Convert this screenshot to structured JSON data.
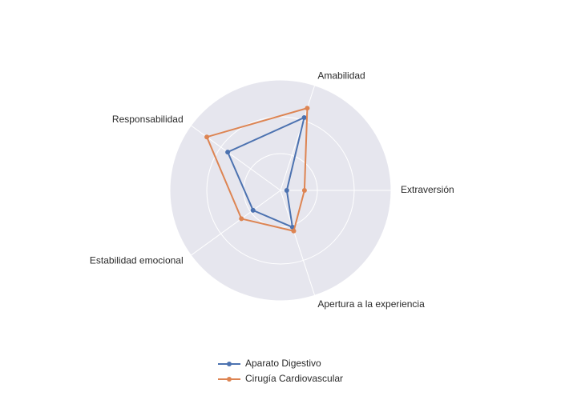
{
  "chart_data": {
    "type": "radar",
    "categories": [
      "Extraversión",
      "Amabilidad",
      "Responsabilidad",
      "Estabilidad emocional",
      "Apertura a la experiencia"
    ],
    "rlim": [
      0,
      3
    ],
    "rticks": [
      1,
      2,
      3
    ],
    "grid": true,
    "legend": "bottom",
    "series": [
      {
        "name": "Aparato Digestivo",
        "color": "#4c72b0",
        "values": [
          0.17,
          2.08,
          1.77,
          0.92,
          1.05
        ]
      },
      {
        "name": "Cirugía Cardiovascular",
        "color": "#dd8452",
        "values": [
          0.65,
          2.35,
          2.47,
          1.31,
          1.16
        ]
      }
    ]
  }
}
